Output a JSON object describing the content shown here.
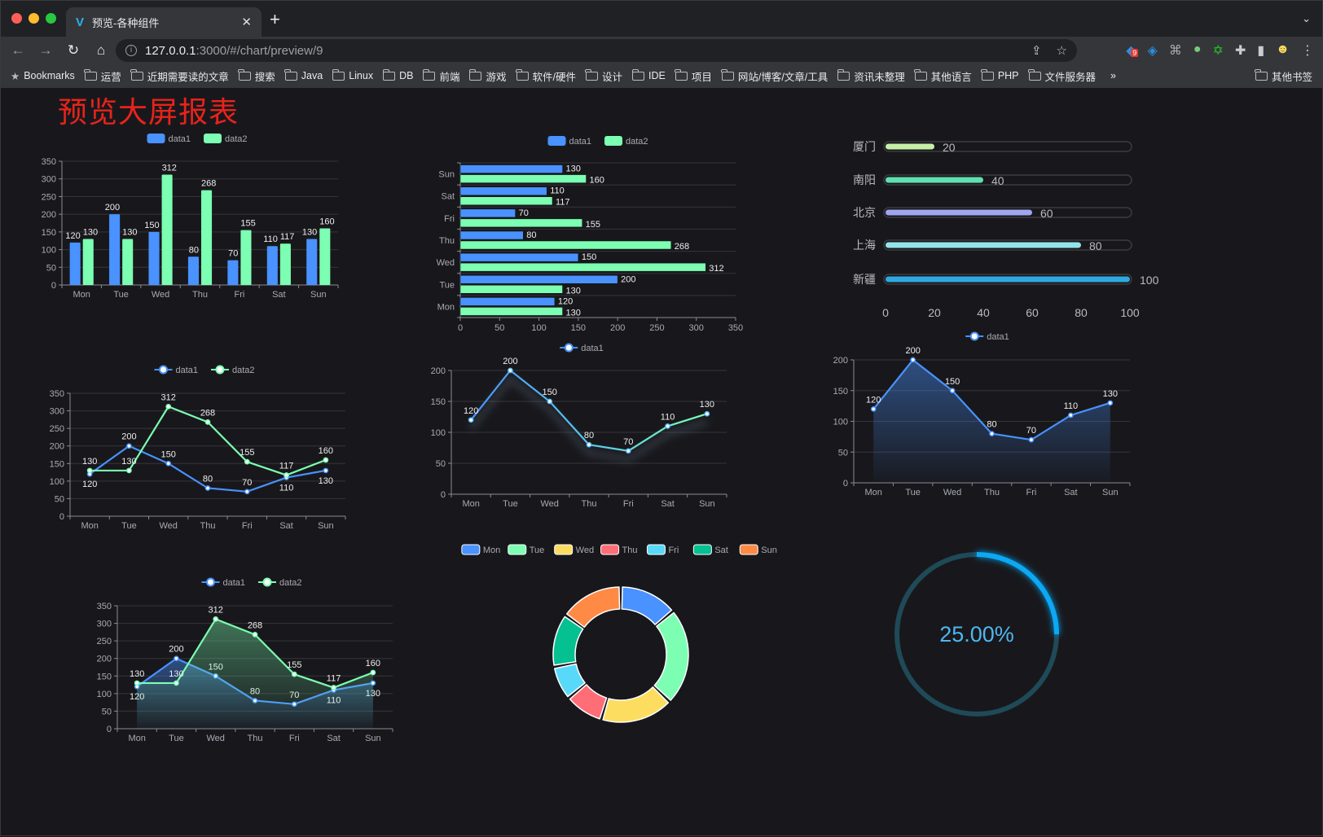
{
  "browser": {
    "tab_title": "预览-各种组件",
    "url_host": "127.0.0.1",
    "url_path": ":3000/#/chart/preview/9",
    "extension_badge": "9",
    "bookmarks": [
      "Bookmarks",
      "运营",
      "近期需要读的文章",
      "搜索",
      "Java",
      "Linux",
      "DB",
      "前端",
      "游戏",
      "软件/硬件",
      "设计",
      "IDE",
      "项目",
      "网站/博客/文章/工具",
      "资讯未整理",
      "其他语言",
      "PHP",
      "文件服务器"
    ],
    "overflow": "»",
    "other_bookmarks": "其他书签"
  },
  "page": {
    "title": "预览大屏报表"
  },
  "colors": {
    "data1": "#4992ff",
    "data2": "#7cffb2",
    "title": "#e8231b",
    "gauge": "#0aa8f5"
  },
  "chart_data": [
    {
      "type": "bar",
      "categories": [
        "Mon",
        "Tue",
        "Wed",
        "Thu",
        "Fri",
        "Sat",
        "Sun"
      ],
      "series": [
        {
          "name": "data1",
          "values": [
            120,
            200,
            150,
            80,
            70,
            110,
            130
          ]
        },
        {
          "name": "data2",
          "values": [
            130,
            130,
            312,
            268,
            155,
            117,
            160
          ]
        }
      ],
      "ylim": [
        0,
        350
      ],
      "grid": true,
      "legend": "top"
    },
    {
      "type": "bar",
      "orientation": "horizontal",
      "categories": [
        "Mon",
        "Tue",
        "Wed",
        "Thu",
        "Fri",
        "Sat",
        "Sun"
      ],
      "series": [
        {
          "name": "data1",
          "values": [
            120,
            200,
            150,
            80,
            70,
            110,
            130
          ]
        },
        {
          "name": "data2",
          "values": [
            130,
            130,
            312,
            268,
            155,
            117,
            160
          ]
        }
      ],
      "xlim": [
        0,
        350
      ],
      "legend": "top"
    },
    {
      "type": "bar",
      "orientation": "horizontal",
      "categories": [
        "厦门",
        "南阳",
        "北京",
        "上海",
        "新疆"
      ],
      "values": [
        20,
        40,
        60,
        80,
        100
      ],
      "colors": [
        "#c6f0a6",
        "#5fe0b0",
        "#9fa5ee",
        "#92e4ea",
        "#2ea9e0"
      ],
      "xlim": [
        0,
        100
      ]
    },
    {
      "type": "line",
      "categories": [
        "Mon",
        "Tue",
        "Wed",
        "Thu",
        "Fri",
        "Sat",
        "Sun"
      ],
      "series": [
        {
          "name": "data1",
          "values": [
            120,
            200,
            150,
            80,
            70,
            110,
            130
          ]
        },
        {
          "name": "data2",
          "values": [
            130,
            130,
            312,
            268,
            155,
            117,
            160
          ]
        }
      ],
      "ylim": [
        0,
        350
      ],
      "grid": true,
      "legend": "top"
    },
    {
      "type": "line",
      "categories": [
        "Mon",
        "Tue",
        "Wed",
        "Thu",
        "Fri",
        "Sat",
        "Sun"
      ],
      "series": [
        {
          "name": "data1",
          "values": [
            120,
            200,
            150,
            80,
            70,
            110,
            130
          ]
        }
      ],
      "ylim": [
        0,
        200
      ],
      "grid": true,
      "legend": "top"
    },
    {
      "type": "area",
      "categories": [
        "Mon",
        "Tue",
        "Wed",
        "Thu",
        "Fri",
        "Sat",
        "Sun"
      ],
      "series": [
        {
          "name": "data1",
          "values": [
            120,
            200,
            150,
            80,
            70,
            110,
            130
          ]
        }
      ],
      "ylim": [
        0,
        200
      ],
      "grid": true,
      "legend": "top"
    },
    {
      "type": "area",
      "categories": [
        "Mon",
        "Tue",
        "Wed",
        "Thu",
        "Fri",
        "Sat",
        "Sun"
      ],
      "series": [
        {
          "name": "data1",
          "values": [
            120,
            200,
            150,
            80,
            70,
            110,
            130
          ]
        },
        {
          "name": "data2",
          "values": [
            130,
            130,
            312,
            268,
            155,
            117,
            160
          ]
        }
      ],
      "ylim": [
        0,
        350
      ],
      "grid": true,
      "legend": "top"
    },
    {
      "type": "pie",
      "donut": true,
      "categories": [
        "Mon",
        "Tue",
        "Wed",
        "Thu",
        "Fri",
        "Sat",
        "Sun"
      ],
      "values": [
        120,
        200,
        150,
        80,
        70,
        110,
        130
      ],
      "colors": [
        "#4992ff",
        "#7cffb2",
        "#fddd60",
        "#ff6e76",
        "#58d9f9",
        "#05c091",
        "#ff8a45"
      ],
      "legend": "top"
    },
    {
      "type": "gauge",
      "value": 25,
      "label": "25.00%"
    }
  ]
}
